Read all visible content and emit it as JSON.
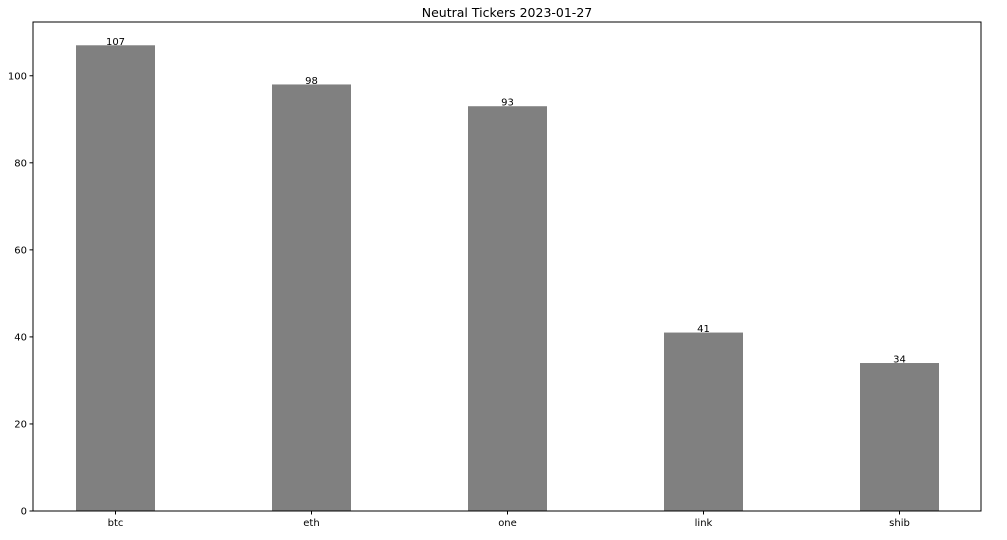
{
  "chart_data": {
    "type": "bar",
    "title": "Neutral Tickers 2023-01-27",
    "xlabel": "",
    "ylabel": "",
    "categories": [
      "btc",
      "eth",
      "one",
      "link",
      "shib"
    ],
    "values": [
      107,
      98,
      93,
      41,
      34
    ],
    "data_labels": [
      "107",
      "98",
      "93",
      "41",
      "34"
    ],
    "yticks": [
      0,
      20,
      40,
      60,
      80,
      100
    ],
    "ylim": [
      0,
      112.35
    ],
    "grid": false,
    "legend": "none",
    "bar_color": "#808080"
  }
}
